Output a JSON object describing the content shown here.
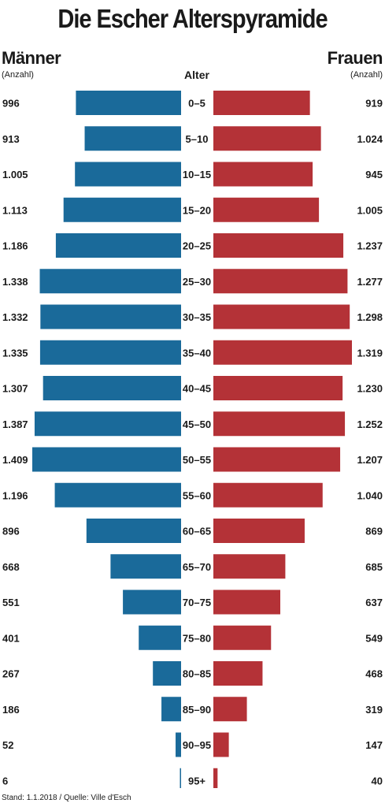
{
  "chart_data": {
    "type": "bar",
    "title": "Die Escher Alterspyramide",
    "left_label": "Männer",
    "left_unit": "(Anzahl)",
    "right_label": "Frauen",
    "right_unit": "(Anzahl)",
    "center_label": "Alter",
    "categories": [
      "0–5",
      "5–10",
      "10–15",
      "15–20",
      "20–25",
      "25–30",
      "30–35",
      "35–40",
      "40–45",
      "45–50",
      "50–55",
      "55–60",
      "60–65",
      "65–70",
      "70–75",
      "75–80",
      "80–85",
      "85–90",
      "90–95",
      "95+"
    ],
    "series": [
      {
        "name": "Männer",
        "color": "#1a6a9a",
        "values": [
          996,
          913,
          1005,
          1113,
          1186,
          1338,
          1332,
          1335,
          1307,
          1387,
          1409,
          1196,
          896,
          668,
          551,
          401,
          267,
          186,
          52,
          6
        ],
        "labels": [
          "996",
          "913",
          "1.005",
          "1.113",
          "1.186",
          "1.338",
          "1.332",
          "1.335",
          "1.307",
          "1.387",
          "1.409",
          "1.196",
          "896",
          "668",
          "551",
          "401",
          "267",
          "186",
          "52",
          "6"
        ]
      },
      {
        "name": "Frauen",
        "color": "#b43237",
        "values": [
          919,
          1024,
          945,
          1005,
          1237,
          1277,
          1298,
          1319,
          1230,
          1252,
          1207,
          1040,
          869,
          685,
          637,
          549,
          468,
          319,
          147,
          40
        ],
        "labels": [
          "919",
          "1.024",
          "945",
          "1.005",
          "1.237",
          "1.277",
          "1.298",
          "1.319",
          "1.230",
          "1.252",
          "1.207",
          "1.040",
          "869",
          "685",
          "637",
          "549",
          "468",
          "319",
          "147",
          "40"
        ]
      }
    ]
  },
  "footer": {
    "source": "Stand: 1.1.2018 / Quelle: Ville d'Esch"
  }
}
